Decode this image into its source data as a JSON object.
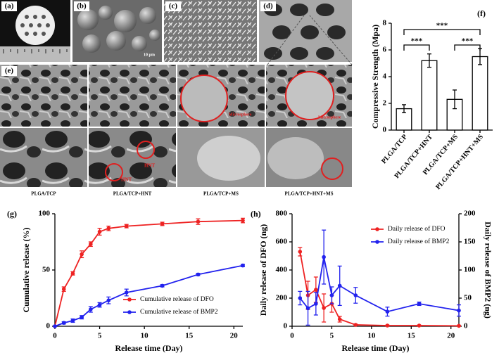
{
  "images": {
    "labels": [
      "(a)",
      "(b)",
      "(c)",
      "(d)",
      "(e)"
    ],
    "captions": [
      "PLGA/TCP",
      "PLGA/TCP+HNT",
      "PLGA/TCP+MS",
      "PLGA/TCP+HNT+MS"
    ],
    "annotations": [
      "HNT",
      "HNT",
      "Microsphere",
      "Microsphere"
    ],
    "scale_bar": "10 μm"
  },
  "chart_data": [
    {
      "type": "bar",
      "title": "(f)",
      "ylabel": "Compressive Strength (Mpa)",
      "categories": [
        "PLGA/TCP",
        "PLGA/TCP+HNT",
        "PLGA/TCP+MS",
        "PLGA/TCP+HNT+MS"
      ],
      "values": [
        1.6,
        5.2,
        2.3,
        5.5
      ],
      "errors": [
        0.3,
        0.5,
        0.7,
        0.6
      ],
      "color": "#ffffff",
      "ylim": [
        0,
        8
      ],
      "yticks": [
        0,
        2,
        4,
        6,
        8
      ],
      "annotations": [
        "***",
        "***",
        "***"
      ]
    },
    {
      "type": "line",
      "title": "(g)",
      "xlabel": "Release time (Day)",
      "ylabel": "Cumulative release (%)",
      "x": [
        0,
        1,
        2,
        3,
        4,
        5,
        6,
        8,
        12,
        16,
        21
      ],
      "series": [
        {
          "name": "Cumulative release of DFO",
          "color": "#ee2222",
          "values": [
            0,
            33,
            47,
            64,
            73,
            84,
            87,
            89,
            91,
            93,
            94
          ],
          "errors": [
            0,
            2,
            1.5,
            3,
            2,
            3,
            2,
            1.5,
            1.5,
            2.5,
            2
          ]
        },
        {
          "name": "Cumulative release of BMP2",
          "color": "#2222ee",
          "values": [
            0,
            3,
            5,
            8,
            15,
            19,
            23,
            30,
            36,
            46,
            54
          ],
          "errors": [
            0,
            1,
            1.5,
            1.5,
            2.5,
            2,
            3,
            3,
            1,
            1,
            1
          ]
        }
      ],
      "xlim": [
        0,
        21
      ],
      "xticks": [
        0,
        5,
        10,
        15,
        20
      ],
      "ylim": [
        0,
        100
      ],
      "yticks": [
        0,
        50,
        100
      ],
      "legend": "lower right"
    },
    {
      "type": "line",
      "title": "(h)",
      "xlabel": "Release time (Day)",
      "ylabel": "Daily release of DFO (ng)",
      "y2label": "Daily release of BMP2 (ng)",
      "x": [
        1,
        2,
        3,
        4,
        5,
        6,
        8,
        12,
        16,
        21
      ],
      "series": [
        {
          "name": "Daily release of DFO",
          "color": "#ee2222",
          "values": [
            530,
            220,
            260,
            130,
            160,
            50,
            10,
            5,
            5,
            3
          ],
          "errors": [
            30,
            100,
            90,
            100,
            60,
            20,
            5,
            3,
            3,
            2
          ]
        },
        {
          "name": "Daily release of BMP2",
          "color": "#2222ee",
          "axis": "y2",
          "values": [
            50,
            32,
            40,
            123,
            55,
            72,
            55,
            26,
            40,
            28
          ],
          "errors": [
            12,
            30,
            20,
            48,
            15,
            35,
            14,
            8,
            3,
            10
          ]
        }
      ],
      "xlim": [
        0,
        21
      ],
      "xticks": [
        0,
        5,
        10,
        15,
        20
      ],
      "ylim": [
        0,
        800
      ],
      "yticks": [
        0,
        200,
        400,
        600,
        800
      ],
      "y2lim": [
        0,
        200
      ],
      "y2ticks": [
        0,
        50,
        100,
        150,
        200
      ],
      "legend": "upper right"
    }
  ]
}
